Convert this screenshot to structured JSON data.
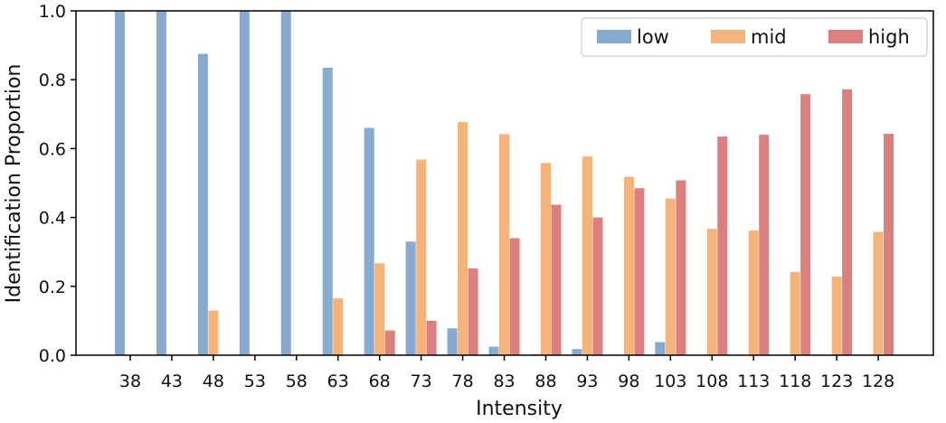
{
  "chart_data": {
    "type": "bar",
    "xlabel": "Intensity",
    "ylabel": "Identification Proportion",
    "ylim": [
      0,
      1.0
    ],
    "yticks": [
      "0.0",
      "0.2",
      "0.4",
      "0.6",
      "0.8",
      "1.0"
    ],
    "grid": false,
    "legend_position": "top-right",
    "categories": [
      "38",
      "43",
      "48",
      "53",
      "58",
      "63",
      "68",
      "73",
      "78",
      "83",
      "88",
      "93",
      "98",
      "103",
      "108",
      "113",
      "118",
      "123",
      "128"
    ],
    "series": [
      {
        "name": "low",
        "color": "#85acd0",
        "values": [
          1.0,
          1.0,
          0.875,
          1.0,
          1.0,
          0.835,
          0.66,
          0.33,
          0.078,
          0.025,
          0.003,
          0.018,
          0.0,
          0.038,
          0.0,
          0.0,
          0.0,
          0.0,
          0.0
        ]
      },
      {
        "name": "mid",
        "color": "#f4b37b",
        "values": [
          0.0,
          0.0,
          0.13,
          0.0,
          0.0,
          0.165,
          0.267,
          0.568,
          0.677,
          0.642,
          0.558,
          0.577,
          0.518,
          0.455,
          0.367,
          0.362,
          0.242,
          0.228,
          0.358
        ]
      },
      {
        "name": "high",
        "color": "#db7f7f",
        "values": [
          0.0,
          0.0,
          0.0,
          0.0,
          0.0,
          0.0,
          0.072,
          0.1,
          0.252,
          0.34,
          0.437,
          0.4,
          0.485,
          0.508,
          0.635,
          0.64,
          0.758,
          0.772,
          0.643
        ]
      }
    ]
  }
}
